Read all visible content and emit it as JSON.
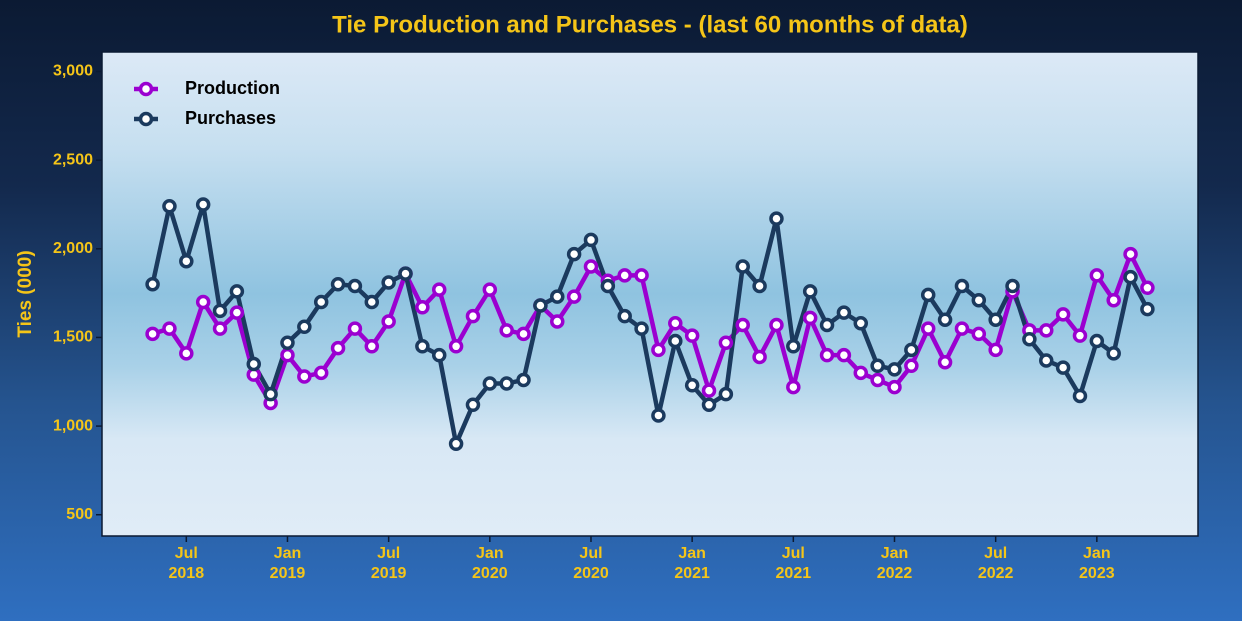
{
  "chart_data": {
    "type": "line",
    "title": "Tie Production and Purchases - (last 60 months of data)",
    "y_label": "Ties (000)",
    "x": [
      "2018-05",
      "2018-06",
      "2018-07",
      "2018-08",
      "2018-09",
      "2018-10",
      "2018-11",
      "2018-12",
      "2019-01",
      "2019-02",
      "2019-03",
      "2019-04",
      "2019-05",
      "2019-06",
      "2019-07",
      "2019-08",
      "2019-09",
      "2019-10",
      "2019-11",
      "2019-12",
      "2020-01",
      "2020-02",
      "2020-03",
      "2020-04",
      "2020-05",
      "2020-06",
      "2020-07",
      "2020-08",
      "2020-09",
      "2020-10",
      "2020-11",
      "2020-12",
      "2021-01",
      "2021-02",
      "2021-03",
      "2021-04",
      "2021-05",
      "2021-06",
      "2021-07",
      "2021-08",
      "2021-09",
      "2021-10",
      "2021-11",
      "2021-12",
      "2022-01",
      "2022-02",
      "2022-03",
      "2022-04",
      "2022-05",
      "2022-06",
      "2022-07",
      "2022-08",
      "2022-09",
      "2022-10",
      "2022-11",
      "2022-12",
      "2023-01",
      "2023-02",
      "2023-03",
      "2023-04"
    ],
    "series": [
      {
        "name": "Production",
        "color": "#9b00d0",
        "values": [
          1520,
          1550,
          1410,
          1700,
          1550,
          1640,
          1290,
          1130,
          1400,
          1280,
          1300,
          1440,
          1550,
          1450,
          1590,
          1860,
          1670,
          1770,
          1450,
          1620,
          1770,
          1540,
          1520,
          1680,
          1590,
          1730,
          1900,
          1820,
          1850,
          1850,
          1430,
          1580,
          1510,
          1200,
          1470,
          1570,
          1390,
          1570,
          1220,
          1610,
          1400,
          1400,
          1300,
          1260,
          1220,
          1340,
          1550,
          1360,
          1550,
          1520,
          1430,
          1760,
          1540,
          1540,
          1630,
          1510,
          1850,
          1710,
          1970,
          1780
        ]
      },
      {
        "name": "Purchases",
        "color": "#1b3a5e",
        "values": [
          1800,
          2240,
          1930,
          2250,
          1650,
          1760,
          1350,
          1180,
          1470,
          1560,
          1700,
          1800,
          1790,
          1700,
          1810,
          1860,
          1450,
          1400,
          900,
          1120,
          1240,
          1240,
          1260,
          1680,
          1730,
          1970,
          2050,
          1790,
          1620,
          1550,
          1060,
          1480,
          1230,
          1120,
          1180,
          1900,
          1790,
          2170,
          1450,
          1760,
          1570,
          1640,
          1580,
          1340,
          1320,
          1430,
          1740,
          1600,
          1790,
          1710,
          1600,
          1790,
          1490,
          1370,
          1330,
          1170,
          1480,
          1410,
          1840,
          1660
        ]
      }
    ],
    "xlim": [
      "2018-02",
      "2023-07"
    ],
    "xticks": [
      {
        "value": "2018-07",
        "label": "Jul 2018"
      },
      {
        "value": "2019-01",
        "label": "Jan 2019"
      },
      {
        "value": "2019-07",
        "label": "Jul 2019"
      },
      {
        "value": "2020-01",
        "label": "Jan 2020"
      },
      {
        "value": "2020-07",
        "label": "Jul 2020"
      },
      {
        "value": "2021-01",
        "label": "Jan 2021"
      },
      {
        "value": "2021-07",
        "label": "Jul 2021"
      },
      {
        "value": "2022-01",
        "label": "Jan 2022"
      },
      {
        "value": "2022-07",
        "label": "Jul 2022"
      },
      {
        "value": "2023-01",
        "label": "Jan 2023"
      }
    ],
    "ylim": [
      380,
      3110
    ],
    "yticks": [
      500,
      {
        "value": 1000,
        "label": "1,000"
      },
      {
        "value": 1500,
        "label": "1,500"
      },
      {
        "value": 2000,
        "label": "2,000"
      },
      {
        "value": 2500,
        "label": "2,500"
      },
      {
        "value": 3000,
        "label": "3,000"
      }
    ],
    "legend": "top-left"
  }
}
